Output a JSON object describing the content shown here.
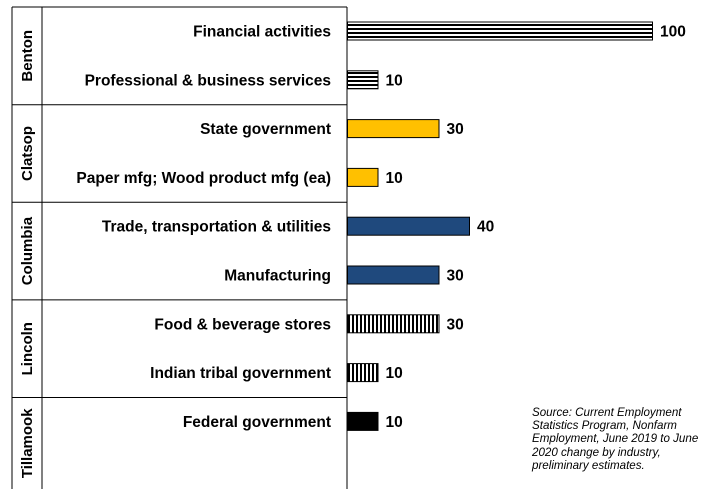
{
  "chart_data": {
    "type": "bar",
    "orientation": "horizontal",
    "groups": [
      {
        "name": "Benton",
        "style": "hstripe",
        "color": "#000000",
        "bars": [
          {
            "label": "Financial activities",
            "value": 100
          },
          {
            "label": "Professional & business services",
            "value": 10
          }
        ]
      },
      {
        "name": "Clatsop",
        "style": "solid",
        "color": "#FFC000",
        "bars": [
          {
            "label": "State government",
            "value": 30
          },
          {
            "label": "Paper mfg; Wood product mfg (ea)",
            "value": 10
          }
        ]
      },
      {
        "name": "Columbia",
        "style": "solid",
        "color": "#1F497D",
        "bars": [
          {
            "label": "Trade, transportation & utilities",
            "value": 40
          },
          {
            "label": "Manufacturing",
            "value": 30
          }
        ]
      },
      {
        "name": "Lincoln",
        "style": "vstripe",
        "color": "#000000",
        "bars": [
          {
            "label": "Food & beverage stores",
            "value": 30
          },
          {
            "label": "Indian tribal government",
            "value": 10
          }
        ]
      },
      {
        "name": "Tillamook",
        "style": "solid",
        "color": "#000000",
        "bars": [
          {
            "label": "Federal government",
            "value": 10
          }
        ]
      }
    ],
    "xlim": [
      0,
      100
    ],
    "grid": false,
    "legend": "none"
  },
  "source_note": "Source: Current Employment Statistics Program, Nonfarm Employment, June 2019 to June 2020 change by industry, preliminary estimates."
}
